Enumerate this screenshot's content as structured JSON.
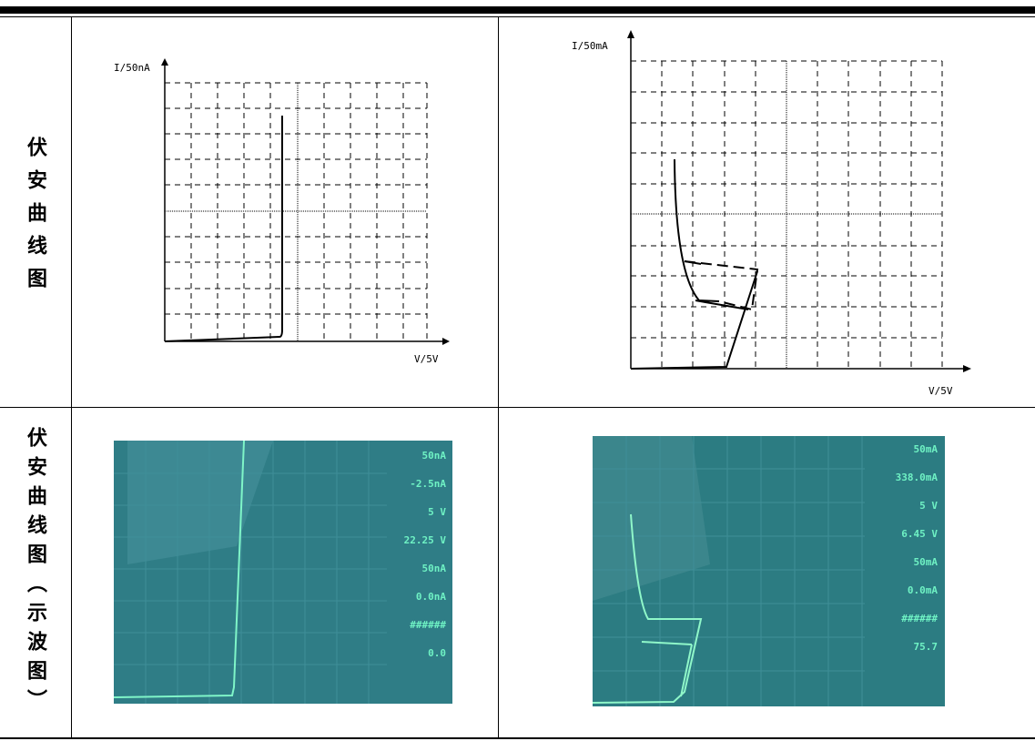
{
  "table": {
    "rows": [
      {
        "header": "伏安曲线图",
        "cells": [
          {
            "y_label": "I/50nA",
            "x_label": "V/5V"
          },
          {
            "y_label": "I/50mA",
            "x_label": "V/5V"
          }
        ]
      },
      {
        "header": "伏安曲线图（示波图）",
        "cells": [
          {
            "readouts": [
              "50nA",
              "-2.5nA",
              "5 V",
              "22.25 V",
              "50nA",
              "0.0nA",
              "######",
              "0.0"
            ]
          },
          {
            "readouts": [
              "50mA",
              "338.0mA",
              "5 V",
              "6.45 V",
              "50mA",
              "0.0mA",
              "######",
              "75.7"
            ]
          }
        ]
      }
    ]
  }
}
